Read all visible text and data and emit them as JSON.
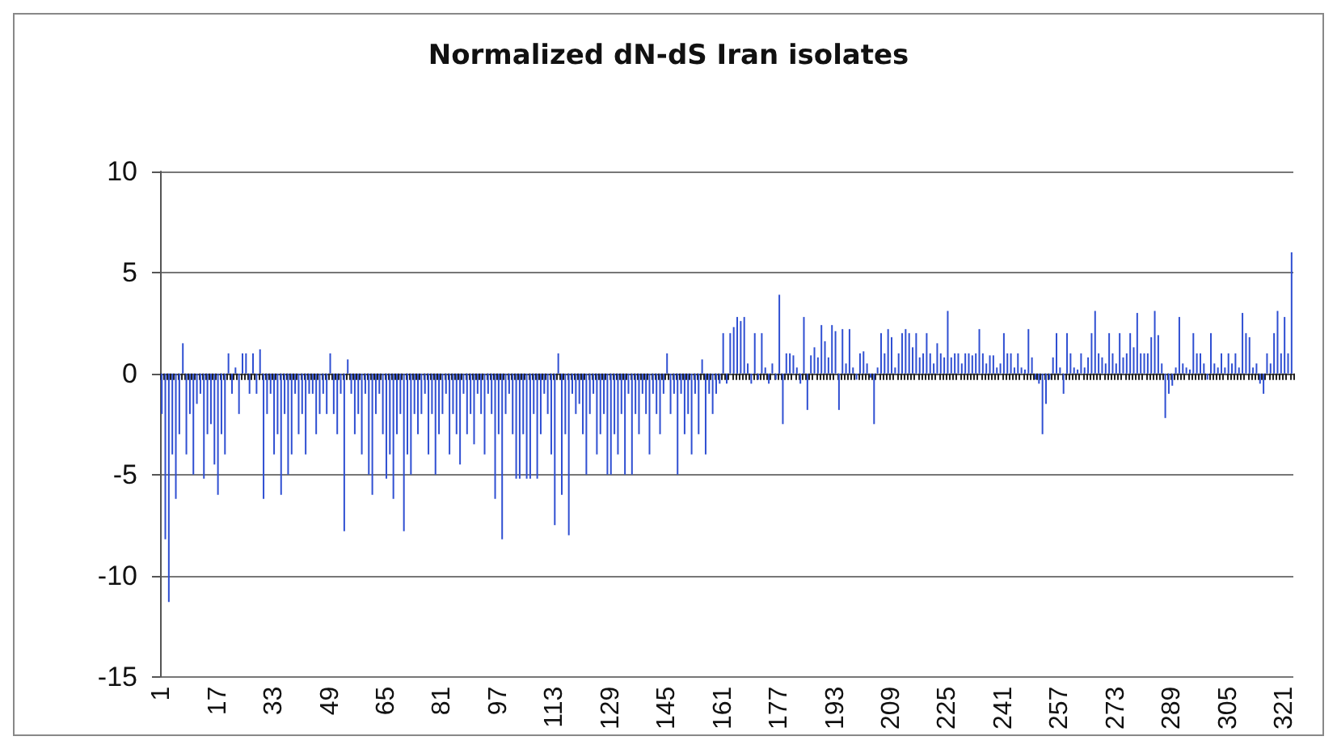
{
  "chart_data": {
    "type": "bar",
    "title": "Normalized dN-dS Iran isolates",
    "categories": [
      "1",
      null,
      null,
      null,
      null,
      null,
      null,
      null,
      null,
      null,
      null,
      null,
      null,
      null,
      null,
      null,
      "17",
      null,
      null,
      null,
      null,
      null,
      null,
      null,
      null,
      null,
      null,
      null,
      null,
      null,
      null,
      null,
      "33",
      null,
      null,
      null,
      null,
      null,
      null,
      null,
      null,
      null,
      null,
      null,
      null,
      null,
      null,
      null,
      "49",
      null,
      null,
      null,
      null,
      null,
      null,
      null,
      null,
      null,
      null,
      null,
      null,
      null,
      null,
      null,
      "65",
      null,
      null,
      null,
      null,
      null,
      null,
      null,
      null,
      null,
      null,
      null,
      null,
      null,
      null,
      null,
      "81",
      null,
      null,
      null,
      null,
      null,
      null,
      null,
      null,
      null,
      null,
      null,
      null,
      null,
      null,
      null,
      "97",
      null,
      null,
      null,
      null,
      null,
      null,
      null,
      null,
      null,
      null,
      null,
      null,
      null,
      null,
      null,
      "113",
      null,
      null,
      null,
      null,
      null,
      null,
      null,
      null,
      null,
      null,
      null,
      null,
      null,
      null,
      null,
      "129",
      null,
      null,
      null,
      null,
      null,
      null,
      null,
      null,
      null,
      null,
      null,
      null,
      null,
      null,
      null,
      "145",
      null,
      null,
      null,
      null,
      null,
      null,
      null,
      null,
      null,
      null,
      null,
      null,
      null,
      null,
      null,
      "161",
      null,
      null,
      null,
      null,
      null,
      null,
      null,
      null,
      null,
      null,
      null,
      null,
      null,
      null,
      null,
      "177",
      null,
      null,
      null,
      null,
      null,
      null,
      null,
      null,
      null,
      null,
      null,
      null,
      null,
      null,
      null,
      "193",
      null,
      null,
      null,
      null,
      null,
      null,
      null,
      null,
      null,
      null,
      null,
      null,
      null,
      null,
      null,
      "209",
      null,
      null,
      null,
      null,
      null,
      null,
      null,
      null,
      null,
      null,
      null,
      null,
      null,
      null,
      null,
      "225",
      null,
      null,
      null,
      null,
      null,
      null,
      null,
      null,
      null,
      null,
      null,
      null,
      null,
      null,
      null,
      "241",
      null,
      null,
      null,
      null,
      null,
      null,
      null,
      null,
      null,
      null,
      null,
      null,
      null,
      null,
      null,
      "257",
      null,
      null,
      null,
      null,
      null,
      null,
      null,
      null,
      null,
      null,
      null,
      null,
      null,
      null,
      null,
      "273",
      null,
      null,
      null,
      null,
      null,
      null,
      null,
      null,
      null,
      null,
      null,
      null,
      null,
      null,
      null,
      "289",
      null,
      null,
      null,
      null,
      null,
      null,
      null,
      null,
      null,
      null,
      null,
      null,
      null,
      null,
      null,
      "305",
      null,
      null,
      null,
      null,
      null,
      null,
      null,
      null,
      null,
      null,
      null,
      null,
      null,
      null,
      null,
      "321",
      null,
      null
    ],
    "values": [
      -2,
      -8.2,
      -11.3,
      -4,
      -6.2,
      -3,
      1.5,
      -4,
      -2,
      -5,
      -1.5,
      -1,
      -5.2,
      -3,
      -2.5,
      -4.5,
      -6,
      -3,
      -4,
      1,
      -1,
      0.3,
      -2,
      1,
      1,
      -1,
      1,
      -1,
      1.2,
      -6.2,
      -2,
      -1,
      -4,
      -3,
      -6,
      -2,
      -5,
      -4,
      -1,
      -3,
      -2,
      -4,
      -1,
      -1,
      -3,
      -2,
      -1,
      -2,
      1,
      -2,
      -3,
      -1,
      -7.8,
      0.7,
      -1,
      -3,
      -2,
      -4,
      -1,
      -5,
      -6,
      -2,
      -1,
      -3,
      -5.2,
      -4,
      -6.2,
      -3,
      -2,
      -7.8,
      -4,
      -5,
      -2,
      -3,
      -2,
      -1,
      -4,
      -2,
      -5,
      -3,
      -2,
      -1,
      -4,
      -2,
      -3,
      -4.5,
      -1,
      -3,
      -2,
      -3.5,
      -1,
      -2,
      -4,
      -1,
      -2,
      -6.2,
      -3,
      -8.2,
      -2,
      -1,
      -3,
      -5.2,
      -5.2,
      -3,
      -5.2,
      -5.2,
      -2,
      -5.2,
      -3,
      -1,
      -2,
      -4,
      -7.5,
      1,
      -6,
      -3,
      -8,
      -1,
      -2,
      -1.5,
      -3,
      -5,
      -2,
      -1,
      -4,
      -3,
      -2,
      -5,
      -5,
      -3,
      -4,
      -2,
      -5,
      -1,
      -5,
      -2,
      -3,
      -1,
      -2,
      -4,
      -1,
      -2,
      -3,
      -1,
      1,
      -2,
      -1,
      -5,
      -1,
      -3,
      -2,
      -4,
      -1,
      -3,
      0.7,
      -4,
      -1,
      -2,
      -1,
      -0.5,
      2,
      -0.5,
      2,
      2.3,
      2.8,
      2.6,
      2.8,
      0.5,
      -0.5,
      2,
      -0.3,
      2,
      0.3,
      -0.5,
      0.5,
      -0.3,
      3.9,
      -2.5,
      1,
      1,
      0.9,
      0.3,
      -0.5,
      2.8,
      -1.8,
      0.9,
      1.3,
      0.8,
      2.4,
      1.6,
      0.8,
      2.4,
      2.1,
      -1.8,
      2.2,
      0.5,
      2.2,
      0.3,
      -0.3,
      1,
      1.1,
      0.5,
      -0.2,
      -2.5,
      0.3,
      2,
      1,
      2.2,
      1.8,
      0.3,
      1,
      2,
      2.2,
      2,
      1.3,
      2,
      0.8,
      1,
      2,
      1,
      0.5,
      1.5,
      1,
      0.8,
      3.1,
      0.8,
      1,
      1,
      0.5,
      1,
      1,
      0.9,
      1,
      2.2,
      1,
      0.5,
      0.9,
      0.9,
      0.3,
      0.5,
      2,
      1,
      1,
      0.3,
      1,
      0.3,
      0.2,
      2.2,
      0.8,
      -0.3,
      -0.5,
      -3,
      -1.5,
      -0.3,
      0.8,
      2,
      0.3,
      -1,
      2,
      1,
      0.3,
      0.2,
      1,
      0.3,
      0.8,
      2,
      3.1,
      1,
      0.8,
      0.5,
      2,
      1,
      0.5,
      2,
      0.8,
      1,
      2,
      1.3,
      3,
      1,
      1,
      1,
      1.8,
      3.1,
      1.9,
      0.5,
      -2.2,
      -1,
      -0.6,
      0.3,
      2.8,
      0.5,
      0.3,
      0.2,
      2,
      1,
      1,
      0.5,
      -0.3,
      2,
      0.5,
      0.3,
      1,
      0.3,
      1,
      0.5,
      1,
      0.3,
      3,
      2,
      1.8,
      0.3,
      0.5,
      -0.5,
      -1,
      1,
      0.5,
      2,
      3.1,
      1,
      2.8,
      1,
      6
    ],
    "color": "#2f4fd2",
    "ylim": [
      -15,
      10
    ],
    "yticks": [
      -15,
      -10,
      -5,
      0,
      5,
      10
    ],
    "grid": "y"
  }
}
